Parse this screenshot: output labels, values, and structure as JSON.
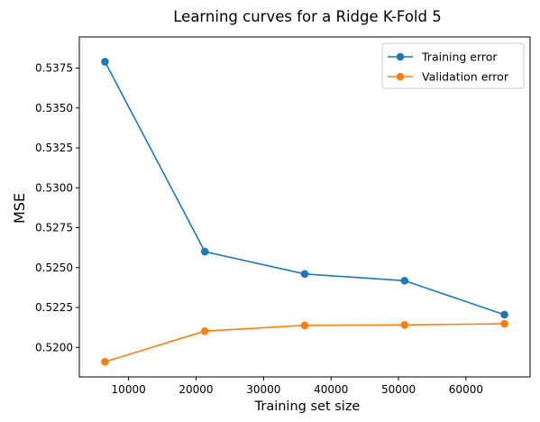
{
  "chart_data": {
    "type": "line",
    "title": "Learning curves for a Ridge K-Fold 5",
    "xlabel": "Training set size",
    "ylabel": "MSE",
    "xlim": [
      2700,
      69500
    ],
    "ylim": [
      0.51815,
      0.53945
    ],
    "xticks": [
      10000,
      20000,
      30000,
      40000,
      50000,
      60000
    ],
    "xtick_labels": [
      "10000",
      "20000",
      "30000",
      "40000",
      "50000",
      "60000"
    ],
    "yticks": [
      0.52,
      0.5225,
      0.525,
      0.5275,
      0.53,
      0.5325,
      0.535,
      0.5375
    ],
    "ytick_labels": [
      "0.5200",
      "0.5225",
      "0.5250",
      "0.5275",
      "0.5300",
      "0.5325",
      "0.5350",
      "0.5375"
    ],
    "grid": false,
    "legend_position": "top-right",
    "series": [
      {
        "name": "Training error",
        "color": "#1f77b4",
        "marker": "circle",
        "x": [
          6500,
          21300,
          36100,
          50900,
          65700
        ],
        "y": [
          0.5379,
          0.526,
          0.5246,
          0.52418,
          0.52205
        ]
      },
      {
        "name": "Validation error",
        "color": "#ff7f0e",
        "marker": "circle",
        "x": [
          6500,
          21300,
          36100,
          50900,
          65700
        ],
        "y": [
          0.5191,
          0.52102,
          0.52138,
          0.52141,
          0.52148
        ]
      }
    ]
  }
}
